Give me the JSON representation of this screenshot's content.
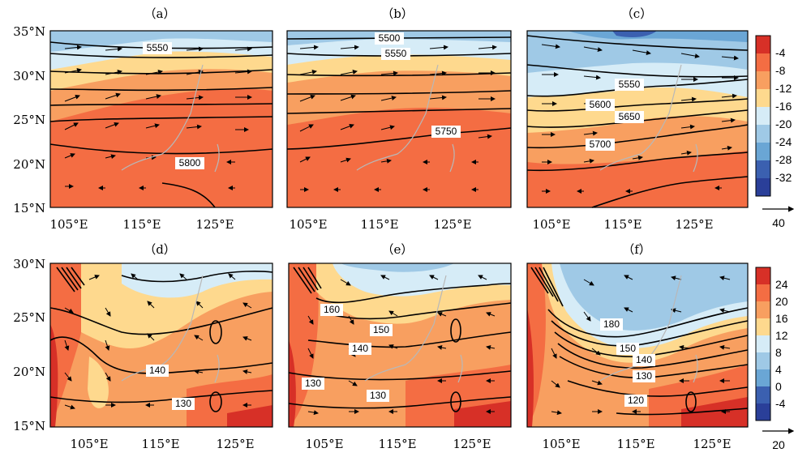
{
  "figure": {
    "rows": [
      {
        "lat_ticks": [
          "35°N",
          "30°N",
          "25°N",
          "20°N",
          "15°N"
        ],
        "lon_ticks": [
          "105°E",
          "115°E",
          "125°E"
        ],
        "colorbar": {
          "ticks": [
            "-4",
            "-8",
            "-12",
            "-16",
            "-20",
            "-24",
            "-28",
            "-32"
          ],
          "colors": [
            "#d73027",
            "#f46d43",
            "#f89f60",
            "#fed98e",
            "#d6ecf7",
            "#9fc9e6",
            "#6aa6d5",
            "#3b60b0",
            "#2a3f99"
          ],
          "vector_ref": "40"
        },
        "panels": [
          {
            "title": "（a）",
            "contour_labels": [
              "5550",
              "5800"
            ]
          },
          {
            "title": "（b）",
            "contour_labels": [
              "5500",
              "5550",
              "5750"
            ]
          },
          {
            "title": "（c）",
            "contour_labels": [
              "5550",
              "5600",
              "5650",
              "5700"
            ]
          }
        ]
      },
      {
        "lat_ticks": [
          "30°N",
          "25°N",
          "20°N",
          "15°N"
        ],
        "lon_ticks": [
          "105°E",
          "115°E",
          "125°E"
        ],
        "colorbar": {
          "ticks": [
            "24",
            "20",
            "16",
            "12",
            "8",
            "4",
            "0",
            "-4"
          ],
          "colors": [
            "#d73027",
            "#f46d43",
            "#f89f60",
            "#fed98e",
            "#d6ecf7",
            "#9fc9e6",
            "#6aa6d5",
            "#3b60b0",
            "#2a3f99"
          ],
          "vector_ref": "20"
        },
        "panels": [
          {
            "title": "（d）",
            "contour_labels": [
              "140",
              "130"
            ]
          },
          {
            "title": "（e）",
            "contour_labels": [
              "160",
              "150",
              "140",
              "130",
              "130"
            ]
          },
          {
            "title": "（f）",
            "contour_labels": [
              "180",
              "150",
              "140",
              "130",
              "120"
            ]
          }
        ]
      }
    ]
  }
}
